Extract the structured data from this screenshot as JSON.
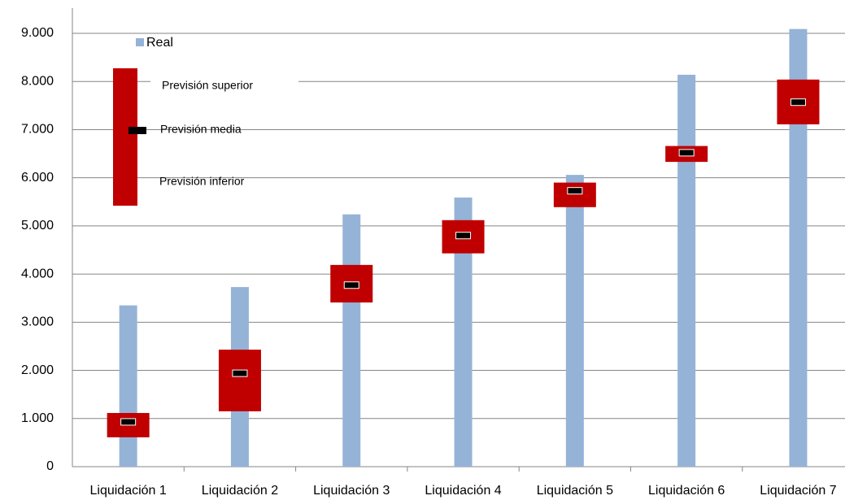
{
  "chart_data": {
    "type": "bar",
    "categories": [
      "Liquidación 1",
      "Liquidación 2",
      "Liquidación 3",
      "Liquidación 4",
      "Liquidación 5",
      "Liquidación 6",
      "Liquidación 7"
    ],
    "series": [
      {
        "name": "Real",
        "color": "#95b3d7",
        "values": [
          3350,
          3730,
          5240,
          5590,
          6060,
          8140,
          9090
        ]
      },
      {
        "name": "Previsión superior",
        "color": "#c00000",
        "values": [
          1115,
          2430,
          4190,
          5120,
          5900,
          6660,
          8040
        ]
      },
      {
        "name": "Previsión media",
        "color": "#000000",
        "values": [
          930,
          1940,
          3770,
          4800,
          5730,
          6520,
          7570
        ]
      },
      {
        "name": "Previsión inferior",
        "color": "#c00000",
        "values": [
          610,
          1150,
          3410,
          4430,
          5390,
          6330,
          7110
        ]
      }
    ],
    "ylim": [
      0,
      9000
    ],
    "yticks": [
      0,
      {
        "value": 1000,
        "label": "1.000"
      },
      {
        "value": 2000,
        "label": "2.000"
      },
      {
        "value": 3000,
        "label": "3.000"
      },
      {
        "value": 4000,
        "label": "4.000"
      },
      {
        "value": 5000,
        "label": "5.000"
      },
      {
        "value": 6000,
        "label": "6.000"
      },
      {
        "value": 7000,
        "label": "7.000"
      },
      {
        "value": 8000,
        "label": "8.000"
      },
      {
        "value": 9000,
        "label": "9.000"
      }
    ],
    "grid": true
  }
}
